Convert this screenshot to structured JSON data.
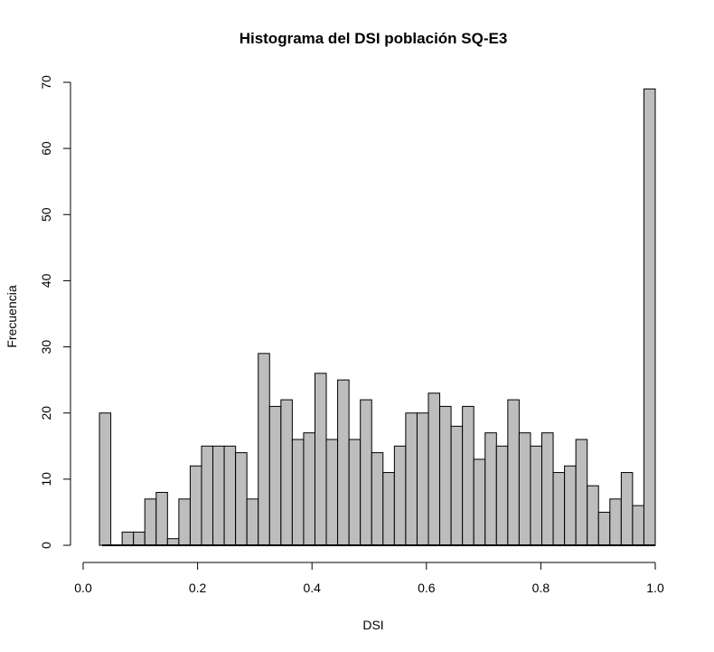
{
  "chart_data": {
    "type": "bar",
    "title": "Histograma del DSI población SQ-E3",
    "xlabel": "DSI",
    "ylabel": "Frecuencia",
    "xlim": [
      0.0,
      1.0
    ],
    "ylim": [
      0,
      70
    ],
    "x_ticks": [
      "0.0",
      "0.2",
      "0.4",
      "0.6",
      "0.8",
      "1.0"
    ],
    "y_ticks": [
      "0",
      "10",
      "20",
      "30",
      "40",
      "50",
      "60",
      "70"
    ],
    "bin_start": 0.02,
    "bin_width": 0.02,
    "values": [
      20,
      0,
      2,
      2,
      7,
      8,
      1,
      7,
      12,
      15,
      15,
      15,
      14,
      7,
      29,
      21,
      22,
      16,
      17,
      26,
      16,
      25,
      16,
      22,
      14,
      11,
      15,
      20,
      20,
      23,
      21,
      18,
      21,
      13,
      17,
      15,
      22,
      17,
      15,
      17,
      11,
      12,
      16,
      9,
      5,
      7,
      11,
      6,
      69
    ],
    "grid": false,
    "bar_color": "#bdbdbd"
  }
}
